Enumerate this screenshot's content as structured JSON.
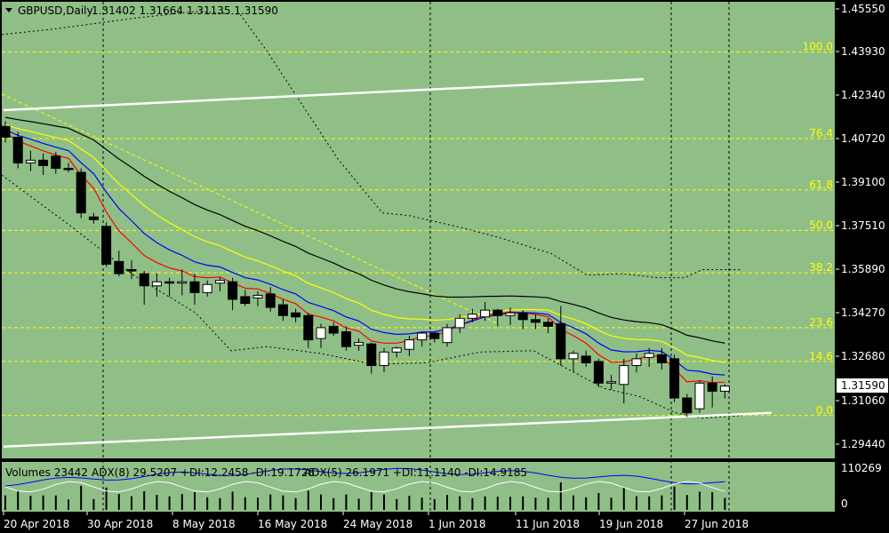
{
  "header": {
    "symbol": "GBPUSD,Daily",
    "ohlc": "1.31402 1.31664 1.31135 1.31590"
  },
  "indicator_header": {
    "volumes": "Volumes 23442",
    "adx8": "ADX(8) 29.5207 +DI:12.2458 -DI:19.1728",
    "adx5": "ADX(5) 26.1971 +DI:11.1140 -DI:14.9185"
  },
  "price_axis": {
    "ticks": [
      "1.45550",
      "1.43930",
      "1.42340",
      "1.40720",
      "1.39100",
      "1.37510",
      "1.35890",
      "1.34270",
      "1.32680",
      "1.31060",
      "1.29440"
    ],
    "current_price": "1.31590"
  },
  "volume_axis": {
    "ticks": [
      "110269",
      "0"
    ]
  },
  "date_axis": {
    "labels": [
      "20 Apr 2018",
      "30 Apr 2018",
      "8 May 2018",
      "16 May 2018",
      "24 May 2018",
      "1 Jun 2018",
      "11 Jun 2018",
      "19 Jun 2018",
      "27 Jun 2018"
    ]
  },
  "fibonacci_levels": [
    {
      "label": "100.0",
      "price": 1.4395
    },
    {
      "label": "76.4",
      "price": 1.4075
    },
    {
      "label": "61.8",
      "price": 1.3885
    },
    {
      "label": "50.0",
      "price": 1.3735
    },
    {
      "label": "38.2",
      "price": 1.3578
    },
    {
      "label": "23.6",
      "price": 1.3375
    },
    {
      "label": "14.6",
      "price": 1.325
    },
    {
      "label": "0.0",
      "price": 1.305
    }
  ],
  "colors": {
    "background": "#8fbf87",
    "axis_bg": "#ffffff",
    "grid_dashed": "#000000",
    "fib": "#ffff00",
    "trendline": "#ffffff",
    "ma_fast": "#ff0000",
    "ma_mid": "#0000ff",
    "ma_slow": "#ffff00",
    "ma_long": "#000000",
    "bear_candle": "#000000",
    "bull_candle": "#ffffff",
    "adx_main": "#0000ff",
    "adx_di": "#ffffff"
  },
  "chart_data": {
    "type": "candlestick",
    "symbol": "GBPUSD",
    "timeframe": "Daily",
    "ylim": [
      1.2885,
      1.4598
    ],
    "last_candle": {
      "open": 1.31402,
      "high": 1.31664,
      "low": 1.31135,
      "close": 1.3159
    },
    "candles": [
      {
        "o": 1.412,
        "h": 1.414,
        "l": 1.406,
        "c": 1.408
      },
      {
        "o": 1.408,
        "h": 1.41,
        "l": 1.3965,
        "c": 1.3985
      },
      {
        "o": 1.3985,
        "h": 1.403,
        "l": 1.3955,
        "c": 1.3995
      },
      {
        "o": 1.3995,
        "h": 1.402,
        "l": 1.394,
        "c": 1.3975
      },
      {
        "o": 1.401,
        "h": 1.4025,
        "l": 1.3945,
        "c": 1.3965
      },
      {
        "o": 1.3965,
        "h": 1.3985,
        "l": 1.395,
        "c": 1.396
      },
      {
        "o": 1.395,
        "h": 1.3965,
        "l": 1.378,
        "c": 1.38
      },
      {
        "o": 1.3785,
        "h": 1.38,
        "l": 1.376,
        "c": 1.3775
      },
      {
        "o": 1.375,
        "h": 1.3765,
        "l": 1.36,
        "c": 1.361
      },
      {
        "o": 1.362,
        "h": 1.366,
        "l": 1.3565,
        "c": 1.3575
      },
      {
        "o": 1.359,
        "h": 1.3625,
        "l": 1.3555,
        "c": 1.3585
      },
      {
        "o": 1.3575,
        "h": 1.3585,
        "l": 1.346,
        "c": 1.353
      },
      {
        "o": 1.353,
        "h": 1.3575,
        "l": 1.349,
        "c": 1.3545
      },
      {
        "o": 1.3545,
        "h": 1.356,
        "l": 1.349,
        "c": 1.354
      },
      {
        "o": 1.354,
        "h": 1.359,
        "l": 1.3495,
        "c": 1.3545
      },
      {
        "o": 1.3545,
        "h": 1.3575,
        "l": 1.346,
        "c": 1.3505
      },
      {
        "o": 1.3505,
        "h": 1.355,
        "l": 1.349,
        "c": 1.3535
      },
      {
        "o": 1.354,
        "h": 1.356,
        "l": 1.351,
        "c": 1.355
      },
      {
        "o": 1.3545,
        "h": 1.356,
        "l": 1.344,
        "c": 1.348
      },
      {
        "o": 1.349,
        "h": 1.3515,
        "l": 1.3455,
        "c": 1.3465
      },
      {
        "o": 1.3485,
        "h": 1.351,
        "l": 1.3455,
        "c": 1.3495
      },
      {
        "o": 1.35,
        "h": 1.3525,
        "l": 1.3435,
        "c": 1.345
      },
      {
        "o": 1.346,
        "h": 1.348,
        "l": 1.34,
        "c": 1.342
      },
      {
        "o": 1.343,
        "h": 1.3445,
        "l": 1.3395,
        "c": 1.3415
      },
      {
        "o": 1.342,
        "h": 1.343,
        "l": 1.33,
        "c": 1.333
      },
      {
        "o": 1.3335,
        "h": 1.339,
        "l": 1.33,
        "c": 1.3375
      },
      {
        "o": 1.338,
        "h": 1.3395,
        "l": 1.3345,
        "c": 1.3355
      },
      {
        "o": 1.336,
        "h": 1.338,
        "l": 1.329,
        "c": 1.3305
      },
      {
        "o": 1.331,
        "h": 1.3335,
        "l": 1.329,
        "c": 1.332
      },
      {
        "o": 1.3315,
        "h": 1.332,
        "l": 1.3205,
        "c": 1.3235
      },
      {
        "o": 1.3235,
        "h": 1.33,
        "l": 1.321,
        "c": 1.3285
      },
      {
        "o": 1.3285,
        "h": 1.3305,
        "l": 1.3265,
        "c": 1.33
      },
      {
        "o": 1.3295,
        "h": 1.3345,
        "l": 1.327,
        "c": 1.333
      },
      {
        "o": 1.333,
        "h": 1.336,
        "l": 1.3305,
        "c": 1.3355
      },
      {
        "o": 1.3355,
        "h": 1.336,
        "l": 1.332,
        "c": 1.3335
      },
      {
        "o": 1.332,
        "h": 1.339,
        "l": 1.3305,
        "c": 1.3375
      },
      {
        "o": 1.3375,
        "h": 1.3425,
        "l": 1.3355,
        "c": 1.341
      },
      {
        "o": 1.341,
        "h": 1.3445,
        "l": 1.3395,
        "c": 1.3425
      },
      {
        "o": 1.3415,
        "h": 1.347,
        "l": 1.34,
        "c": 1.344
      },
      {
        "o": 1.344,
        "h": 1.3445,
        "l": 1.338,
        "c": 1.342
      },
      {
        "o": 1.342,
        "h": 1.345,
        "l": 1.3385,
        "c": 1.343
      },
      {
        "o": 1.343,
        "h": 1.344,
        "l": 1.337,
        "c": 1.3405
      },
      {
        "o": 1.3405,
        "h": 1.3425,
        "l": 1.337,
        "c": 1.3395
      },
      {
        "o": 1.3395,
        "h": 1.341,
        "l": 1.3355,
        "c": 1.338
      },
      {
        "o": 1.339,
        "h": 1.3455,
        "l": 1.3235,
        "c": 1.326
      },
      {
        "o": 1.326,
        "h": 1.329,
        "l": 1.321,
        "c": 1.328
      },
      {
        "o": 1.327,
        "h": 1.329,
        "l": 1.323,
        "c": 1.3245
      },
      {
        "o": 1.325,
        "h": 1.326,
        "l": 1.3155,
        "c": 1.317
      },
      {
        "o": 1.317,
        "h": 1.32,
        "l": 1.3145,
        "c": 1.3175
      },
      {
        "o": 1.3165,
        "h": 1.326,
        "l": 1.3095,
        "c": 1.3235
      },
      {
        "o": 1.3235,
        "h": 1.328,
        "l": 1.321,
        "c": 1.326
      },
      {
        "o": 1.3265,
        "h": 1.33,
        "l": 1.323,
        "c": 1.328
      },
      {
        "o": 1.3275,
        "h": 1.33,
        "l": 1.322,
        "c": 1.3245
      },
      {
        "o": 1.326,
        "h": 1.3275,
        "l": 1.31,
        "c": 1.3115
      },
      {
        "o": 1.3115,
        "h": 1.313,
        "l": 1.3045,
        "c": 1.306
      },
      {
        "o": 1.3075,
        "h": 1.318,
        "l": 1.306,
        "c": 1.317
      },
      {
        "o": 1.317,
        "h": 1.3195,
        "l": 1.308,
        "c": 1.314
      },
      {
        "o": 1.314,
        "h": 1.3166,
        "l": 1.3113,
        "c": 1.3159
      }
    ],
    "volumes_scale_max": 110269
  }
}
